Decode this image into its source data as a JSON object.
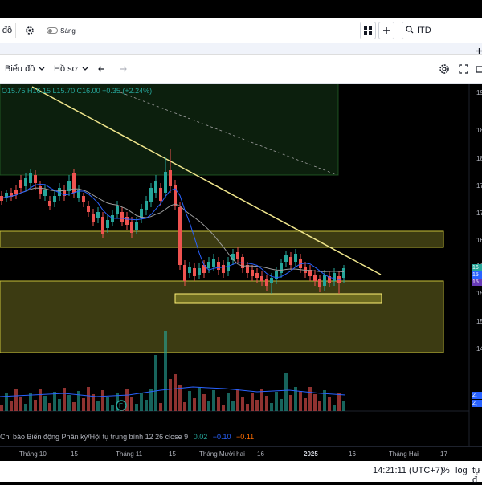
{
  "toolbar": {
    "chart_label": "đồ",
    "settings_icon": "gear-icon",
    "theme_label": "Sáng",
    "layout_icon": "grid-layout-icon",
    "add_icon": "plus-icon",
    "search_value": "ITD",
    "search_icon": "search-icon"
  },
  "secondary_toolbar": {
    "add_icon": "plus-icon",
    "more_icon": "vertical-dots-icon"
  },
  "chart_toolbar": {
    "chart_menu": "Biểu đồ",
    "profile_menu": "Hồ sơ",
    "undo_icon": "undo-icon",
    "redo_icon": "redo-icon",
    "settings_icon": "gear-icon",
    "fullscreen_icon": "fullscreen-icon",
    "snapshot_icon": "camera-icon"
  },
  "ohlc": "O15.75 H16.15 L15.70 C16.00 +0.35 (+2.24%)",
  "price_axis": {
    "ticks": [
      "19",
      "18",
      "18",
      "17",
      "17",
      "16",
      "16",
      "15",
      "15",
      "14"
    ],
    "labels": [
      "16",
      "15",
      "15",
      "2,",
      "2,"
    ],
    "label_colors": [
      "#26a69a",
      "#2962ff",
      "#673ab7",
      "#2962ff",
      "#2962ff"
    ]
  },
  "macd": {
    "text": "Chỉ báo Biến động Phân kỳ/Hội tụ trung bình 12 26 close 9",
    "v1": "0.02",
    "v2": "−0.10",
    "v3": "−0.11",
    "colors": [
      "#26a69a",
      "#2962ff",
      "#ff6d00"
    ]
  },
  "time_axis": [
    "Tháng 10",
    "15",
    "Tháng 11",
    "15",
    "Tháng Mười hai",
    "16",
    "2025",
    "16",
    "Tháng Hai",
    "17"
  ],
  "status": {
    "time": "14:21:11 (UTC+7)",
    "percent": "%",
    "log": "log",
    "auto": "tự đ"
  },
  "colors": {
    "up": "#26a69a",
    "down": "#ef5350",
    "trendline": "#f0e68c",
    "zone_yellow": "#c7c23a",
    "zone_green": "#2e7d32",
    "ma_blue": "#2962ff",
    "ma_gray": "#9e9e9e"
  }
}
